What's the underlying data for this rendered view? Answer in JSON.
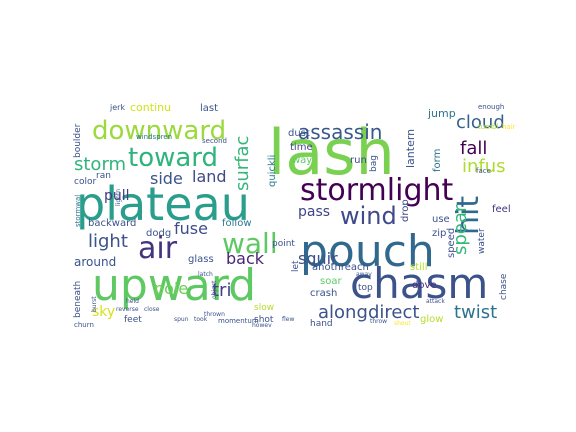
{
  "title": "",
  "palette": [
    "#440154",
    "#3b528b",
    "#21918c",
    "#5ec962",
    "#fde725"
  ],
  "words": [
    {
      "text": "lash",
      "color": "#7ad151"
    },
    {
      "text": "plateau",
      "color": "#2a9d8c"
    },
    {
      "text": "pouch",
      "color": "#31688e"
    },
    {
      "text": "upward",
      "color": "#5ec962"
    },
    {
      "text": "chasm",
      "color": "#3b528b"
    },
    {
      "text": "stormlight",
      "color": "#440154"
    },
    {
      "text": "downward",
      "color": "#9bd93c"
    },
    {
      "text": "toward",
      "color": "#2fb47c"
    },
    {
      "text": "wind",
      "color": "#3e4a89"
    },
    {
      "text": "wall",
      "color": "#5ec962"
    },
    {
      "text": "air",
      "color": "#46327e"
    },
    {
      "text": "hit",
      "color": "#31688e"
    },
    {
      "text": "assassin",
      "color": "#38588c"
    },
    {
      "text": "cloud",
      "color": "#35608d"
    },
    {
      "text": "fall",
      "color": "#440154"
    },
    {
      "text": "infus",
      "color": "#addc30"
    },
    {
      "text": "storm",
      "color": "#2fb47c"
    },
    {
      "text": "surfac",
      "color": "#35b779"
    },
    {
      "text": "land",
      "color": "#3e4989"
    },
    {
      "text": "side",
      "color": "#3a548c"
    },
    {
      "text": "pull",
      "color": "#443a83"
    },
    {
      "text": "continu",
      "color": "#d2e21b"
    },
    {
      "text": "last",
      "color": "#3a548c"
    },
    {
      "text": "jump",
      "color": "#2c728e"
    },
    {
      "text": "lantern",
      "color": "#3b528b"
    },
    {
      "text": "form",
      "color": "#2c728e"
    },
    {
      "text": "light",
      "color": "#3b528b"
    },
    {
      "text": "fuse",
      "color": "#3e4c8a"
    },
    {
      "text": "back",
      "color": "#482576"
    },
    {
      "text": "squir",
      "color": "#3b528b"
    },
    {
      "text": "pass",
      "color": "#414487"
    },
    {
      "text": "along",
      "color": "#3b528b"
    },
    {
      "text": "direct",
      "color": "#3b528b"
    },
    {
      "text": "twist",
      "color": "#2c728e"
    },
    {
      "text": "spear",
      "color": "#35b779"
    },
    {
      "text": "pole",
      "color": "#6ece58"
    },
    {
      "text": "tri",
      "color": "#433e85"
    },
    {
      "text": "sky",
      "color": "#d8e219"
    },
    {
      "text": "around",
      "color": "#3b528b"
    },
    {
      "text": "follow",
      "color": "#2a788e"
    },
    {
      "text": "backward",
      "color": "#3b528b"
    },
    {
      "text": "dodg",
      "color": "#3a548c"
    },
    {
      "text": "glass",
      "color": "#3b528b"
    },
    {
      "text": "dust",
      "color": "#3b528b"
    },
    {
      "text": "time",
      "color": "#404688"
    },
    {
      "text": "way",
      "color": "#5ec962"
    },
    {
      "text": "quickli",
      "color": "#2a788e"
    },
    {
      "text": "run",
      "color": "#3e4a89"
    },
    {
      "text": "bag",
      "color": "#3b528b"
    },
    {
      "text": "drop",
      "color": "#404688"
    },
    {
      "text": "use",
      "color": "#3b528b"
    },
    {
      "text": "zip",
      "color": "#3b528b"
    },
    {
      "text": "speed",
      "color": "#3b528b"
    },
    {
      "text": "feel",
      "color": "#46337e"
    },
    {
      "text": "water",
      "color": "#3b528b"
    },
    {
      "text": "chase",
      "color": "#3b528b"
    },
    {
      "text": "soar",
      "color": "#5ec962"
    },
    {
      "text": "anothreach",
      "color": "#3b528b"
    },
    {
      "text": "still",
      "color": "#b5de2b"
    },
    {
      "text": "dove",
      "color": "#472d7b"
    },
    {
      "text": "crash",
      "color": "#3b528b"
    },
    {
      "text": "top",
      "color": "#3b528b"
    },
    {
      "text": "slow",
      "color": "#b5de2b"
    },
    {
      "text": "shot",
      "color": "#3b528b"
    },
    {
      "text": "point",
      "color": "#3b528b"
    },
    {
      "text": "let",
      "color": "#3b528b"
    },
    {
      "text": "hand",
      "color": "#3b528b"
    },
    {
      "text": "glow",
      "color": "#b5de2b"
    },
    {
      "text": "feet",
      "color": "#3b528b"
    },
    {
      "text": "beneath",
      "color": "#3b528b"
    },
    {
      "text": "boulder",
      "color": "#3b528b"
    },
    {
      "text": "color",
      "color": "#3b528b"
    },
    {
      "text": "ran",
      "color": "#3b528b"
    },
    {
      "text": "jerk",
      "color": "#3b528b"
    },
    {
      "text": "windspren",
      "color": "#2a788e"
    },
    {
      "text": "second",
      "color": "#3b528b"
    },
    {
      "text": "enough",
      "color": "#3b528b"
    },
    {
      "text": "tumbl",
      "color": "#b5de2b"
    },
    {
      "text": "hair",
      "color": "#fde725"
    },
    {
      "text": "face",
      "color": "#3b528b"
    },
    {
      "text": "stormwal",
      "color": "#2a788e"
    },
    {
      "text": "lightn",
      "color": "#3b528b"
    },
    {
      "text": "latch",
      "color": "#3b528b"
    },
    {
      "text": "held",
      "color": "#3b528b"
    },
    {
      "text": "burst",
      "color": "#3b528b"
    },
    {
      "text": "churn",
      "color": "#3b528b"
    },
    {
      "text": "reverse",
      "color": "#3b528b"
    },
    {
      "text": "close",
      "color": "#3b528b"
    },
    {
      "text": "spun",
      "color": "#3b528b"
    },
    {
      "text": "took",
      "color": "#3b528b"
    },
    {
      "text": "momentum",
      "color": "#3b528b"
    },
    {
      "text": "howev",
      "color": "#3b528b"
    },
    {
      "text": "object",
      "color": "#3b528b"
    },
    {
      "text": "thrown",
      "color": "#3b528b"
    },
    {
      "text": "flew",
      "color": "#3b528b"
    },
    {
      "text": "away",
      "color": "#3b528b"
    },
    {
      "text": "attack",
      "color": "#3b528b"
    },
    {
      "text": "throw",
      "color": "#3b528b"
    },
    {
      "text": "shout",
      "color": "#fde725"
    }
  ]
}
